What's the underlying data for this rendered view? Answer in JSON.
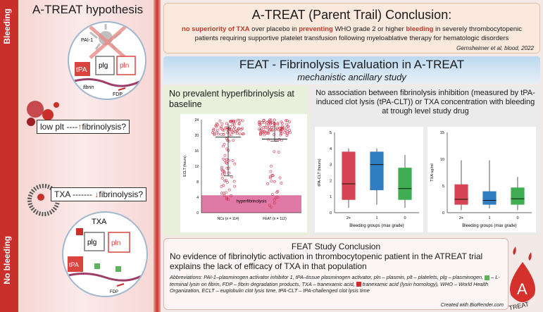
{
  "side": {
    "top_label": "Bleeding",
    "bottom_label": "No bleeding"
  },
  "hypothesis": {
    "title": "A-TREAT hypothesis",
    "top_box": {
      "pre": "low plt",
      "dashes": "----",
      "arrow": "↑",
      "post": "fibrinolysis?"
    },
    "mid_box": {
      "pre": "TXA",
      "dashes": "-------",
      "arrow": "↓",
      "post": "fibrinolysis?"
    },
    "mol": {
      "pai": "PAI-1",
      "tpa": "tPA",
      "plg": "plg",
      "pln": "pln",
      "fibrin": "fibrin",
      "fdp": "FDP",
      "txa": "TXA"
    }
  },
  "header": {
    "title": "A-TREAT (Parent Trail) Conclusion:",
    "s1": "no superiority of TXA",
    "s2": " over placebo in ",
    "s3": "preventing",
    "s4": " WHO grade 2 or higher ",
    "s5": "bleeding",
    "s6": " in severely thrombocytopenic patients requiring supportive platelet transfusion following myeloablative therapy for hematologic disorders",
    "ref": "Gernsheimer et al, blood, 2022"
  },
  "feat": {
    "title": "FEAT - Fibrinolysis Evaluation in A-TREAT",
    "subtitle": "mechanistic ancillary study"
  },
  "panel_left": {
    "heading": "No prevalent hyperfibrinolysis at baseline"
  },
  "panel_right": {
    "heading": "No association between fibrinolysis inhibition (measured by tPA-induced clot lysis (tPA-CLT)) or TXA concentration with bleeding at trough level study drug"
  },
  "chart_data": [
    {
      "type": "scatter",
      "ylabel": "ECLT (hours)",
      "ylim": [
        0,
        24
      ],
      "yticks": [
        "0",
        "4",
        "8",
        "12",
        "16",
        "20",
        "24"
      ],
      "categories": [
        "NCs (n = 114)",
        "FEAT (n = 112)"
      ],
      "band_label": "hyperfibrinolysis",
      "band": [
        0,
        4.5
      ],
      "medians": [
        19.5,
        19
      ],
      "quartiles": [
        [
          9.5,
          23
        ],
        [
          18.5,
          23.5
        ]
      ]
    },
    {
      "type": "box",
      "ylabel": "tPA-CLT (hours)",
      "xlabel": "Bleeding groups (max grade)",
      "ylim": [
        0,
        5
      ],
      "yticks": [
        "0",
        "1",
        "2",
        "3",
        "4",
        "5"
      ],
      "categories": [
        "2+",
        "1",
        "0"
      ],
      "colors": [
        "#d64553",
        "#2f7ec4",
        "#3fae52"
      ],
      "boxes": [
        {
          "min": 0.3,
          "q1": 0.8,
          "med": 1.8,
          "q3": 3.8,
          "max": 4.0
        },
        {
          "min": 0.5,
          "q1": 1.4,
          "med": 3.0,
          "q3": 3.8,
          "max": 4.0
        },
        {
          "min": 0.3,
          "q1": 0.8,
          "med": 1.5,
          "q3": 2.8,
          "max": 3.6
        }
      ]
    },
    {
      "type": "box",
      "ylabel": "TXA ug/ml",
      "xlabel": "Bleeding groups (max grade)",
      "ylim": [
        0,
        15
      ],
      "yticks": [
        "0",
        "5",
        "10",
        "15"
      ],
      "categories": [
        "2+",
        "1",
        "0"
      ],
      "colors": [
        "#d64553",
        "#2f7ec4",
        "#3fae52"
      ],
      "boxes": [
        {
          "min": 0.5,
          "q1": 1.5,
          "med": 2.5,
          "q3": 5.3,
          "max": 9.8
        },
        {
          "min": 0.8,
          "q1": 1.5,
          "med": 2.3,
          "q3": 4.0,
          "max": 9.8
        },
        {
          "min": 0.5,
          "q1": 1.5,
          "med": 2.6,
          "q3": 4.7,
          "max": 6.7
        }
      ]
    }
  ],
  "conclusion": {
    "title": "FEAT Study Conclusion",
    "main": "No evidence of fibrinolytic activation in thrombocytopenic patient in the ATREAT trial explains the lack of efficacy of TXA in that population",
    "abbr_a": "Abbreviations: PAI-1–plasminogen activator inhibitor 1, tPA–tissue plasminogen activator, pln – plasmin, plt – platelets, plg – plasminogen,",
    "abbr_b": "– L-terminal lysin on fibrin, FDP – fibrin degradation products, TXA – tranexamic acid,",
    "abbr_c": "tranexamic acid (lysin homology), WHO – World Health Organization, ECLT – euglobulin clot lysis time, tPA-CLT – tPA-challenged clot lysis time",
    "credit": "Created with BioRender.com"
  },
  "logo": {
    "letter": "A",
    "word": "TREAT"
  },
  "colors": {
    "accent": "#c9302c",
    "green_swatch": "#5fb35a",
    "red_swatch": "#c9302c"
  }
}
